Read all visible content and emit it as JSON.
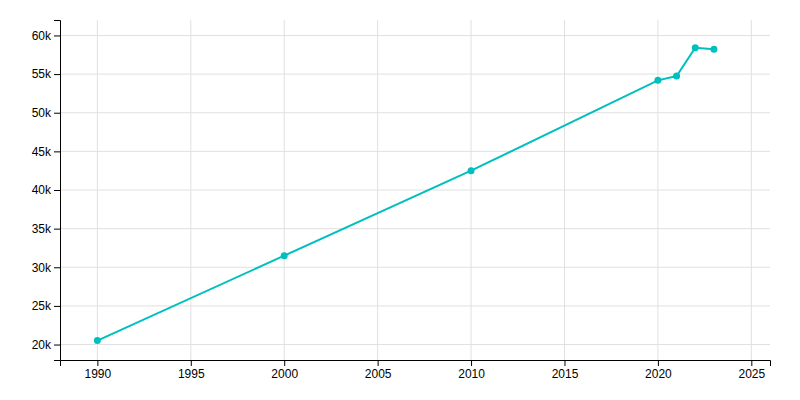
{
  "chart_data": {
    "type": "line",
    "x": [
      1990,
      2000,
      2010,
      2020,
      2021,
      2022,
      2023
    ],
    "values": [
      20510,
      31500,
      42500,
      54190,
      54740,
      58400,
      58200
    ],
    "color": "#00BFBF",
    "marker": "circle",
    "xlim": [
      1988,
      2026
    ],
    "ylim": [
      18000,
      62000
    ],
    "xticks": [
      1990,
      1995,
      2000,
      2005,
      2010,
      2015,
      2020,
      2025
    ],
    "yticks": [
      {
        "value": 20000,
        "label": "20k"
      },
      {
        "value": 25000,
        "label": "25k"
      },
      {
        "value": 30000,
        "label": "30k"
      },
      {
        "value": 35000,
        "label": "35k"
      },
      {
        "value": 40000,
        "label": "40k"
      },
      {
        "value": 45000,
        "label": "45k"
      },
      {
        "value": 50000,
        "label": "50k"
      },
      {
        "value": 55000,
        "label": "55k"
      },
      {
        "value": 60000,
        "label": "60k"
      }
    ],
    "grid": true
  }
}
